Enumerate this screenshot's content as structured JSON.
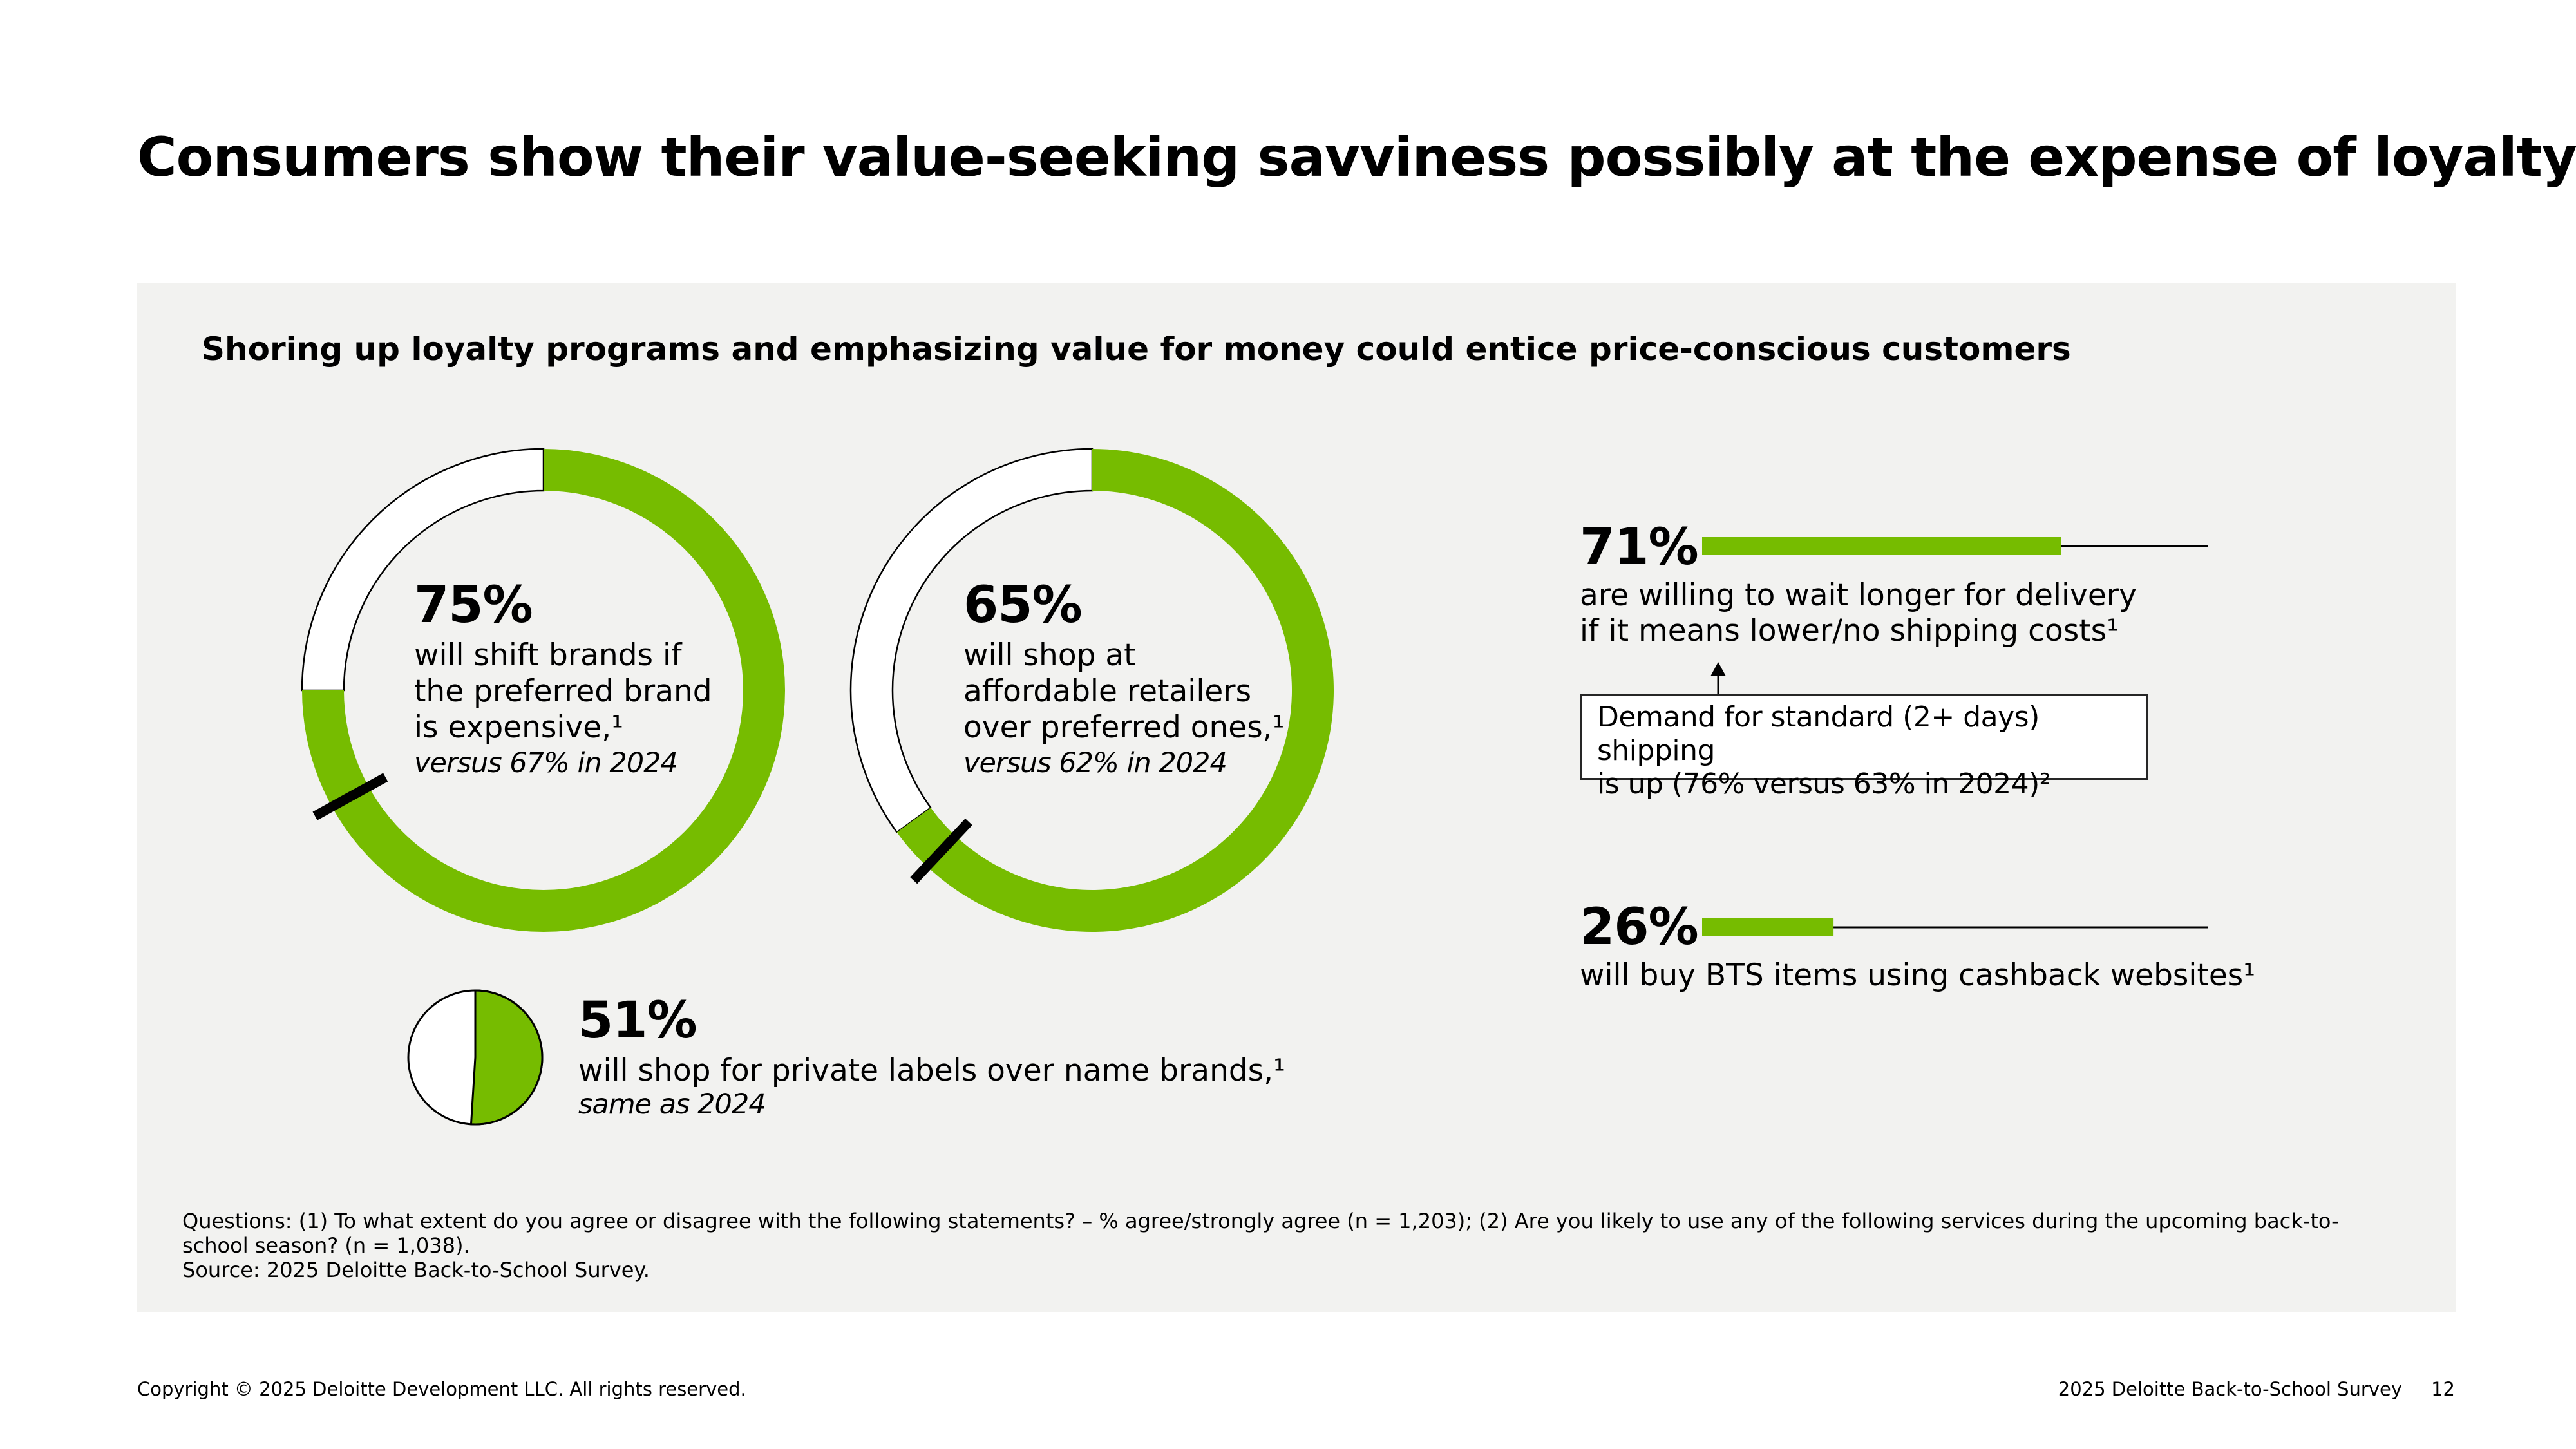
{
  "title": "Consumers show their value-seeking savviness possibly at the expense of loyalty",
  "subtitle": "Shoring up loyalty programs and emphasizing value for money could entice price-conscious customers",
  "colors": {
    "accent": "#76bc00",
    "ink": "#000000",
    "panel": "#f2f2f0"
  },
  "chart_data": [
    {
      "type": "donut",
      "value": 75,
      "max": 100,
      "previous_value": 67,
      "value_label": "75%",
      "description": "will shift brands if the preferred brand is expensive,¹",
      "comparison": "versus 67% in 2024"
    },
    {
      "type": "donut",
      "value": 65,
      "max": 100,
      "previous_value": 62,
      "value_label": "65%",
      "description": "will shop at affordable retailers over preferred ones,¹",
      "comparison": "versus 62% in 2024"
    },
    {
      "type": "pie",
      "value": 51,
      "max": 100,
      "value_label": "51%",
      "description": "will shop for private labels over name brands,¹",
      "comparison": "same as 2024"
    },
    {
      "type": "bar",
      "value": 71,
      "max": 100,
      "value_label": "71%",
      "description_line1": "are willing to wait longer for delivery",
      "description_line2": "if it means lower/no shipping costs¹",
      "callout_line1": "Demand for standard (2+ days) shipping",
      "callout_line2": "is up (76% versus 63% in 2024)²"
    },
    {
      "type": "bar",
      "value": 26,
      "max": 100,
      "value_label": "26%",
      "description": "will buy BTS items using cashback websites¹"
    }
  ],
  "notes": {
    "questions": "Questions: (1) To what extent do you agree or disagree with the following statements? – % agree/strongly agree (n = 1,203); (2) Are you likely to use any of the following services during the upcoming back-to-school season? (n = 1,038).",
    "source": "Source: 2025 Deloitte Back-to-School Survey."
  },
  "footer": {
    "copyright": "Copyright © 2025 Deloitte Development LLC. All rights reserved.",
    "survey": "2025 Deloitte Back-to-School Survey",
    "page_number": "12"
  }
}
